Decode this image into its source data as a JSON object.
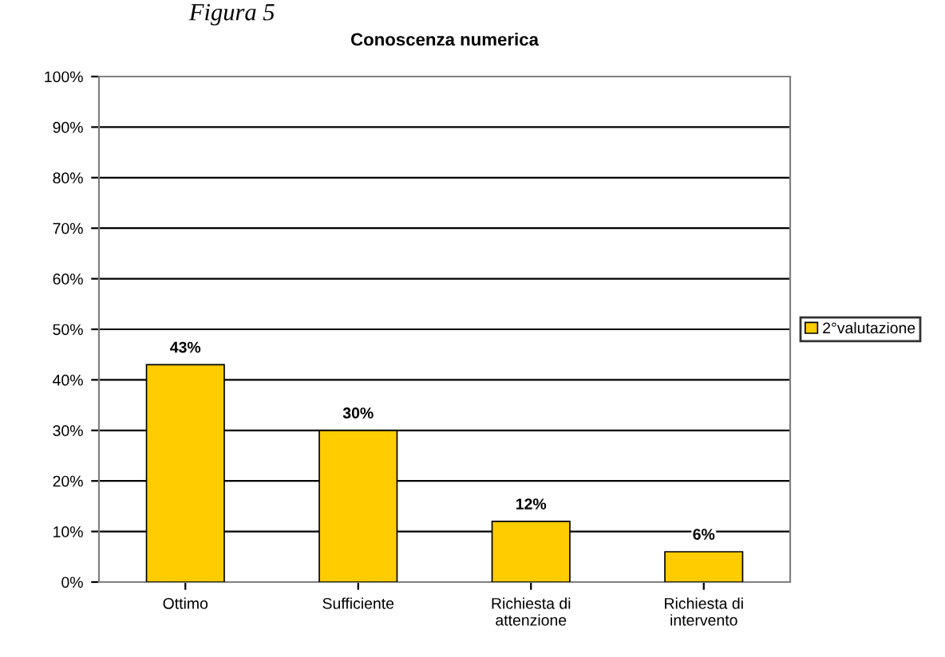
{
  "chart_data": {
    "type": "bar",
    "title": "Conoscenza numerica",
    "categories": [
      "Ottimo",
      "Sufficiente",
      "Richiesta di\nattenzione",
      "Richiesta di\nintervento"
    ],
    "series": [
      {
        "name": "2°valutazione",
        "color": "#ffcc00",
        "values": [
          43,
          30,
          12,
          6
        ]
      }
    ],
    "value_labels": [
      "43%",
      "30%",
      "12%",
      "6%"
    ],
    "ylim": [
      0,
      100
    ],
    "yticks": [
      {
        "value": 0,
        "label": "0%"
      },
      {
        "value": 10,
        "label": "10%"
      },
      {
        "value": 20,
        "label": "20%"
      },
      {
        "value": 30,
        "label": "30%"
      },
      {
        "value": 40,
        "label": "40%"
      },
      {
        "value": 50,
        "label": "50%"
      },
      {
        "value": 60,
        "label": "60%"
      },
      {
        "value": 70,
        "label": "70%"
      },
      {
        "value": 80,
        "label": "80%"
      },
      {
        "value": 90,
        "label": "90%"
      },
      {
        "value": 100,
        "label": "100%"
      }
    ],
    "grid": "y",
    "legend": "right",
    "annotations": [
      "Figura 5"
    ]
  }
}
